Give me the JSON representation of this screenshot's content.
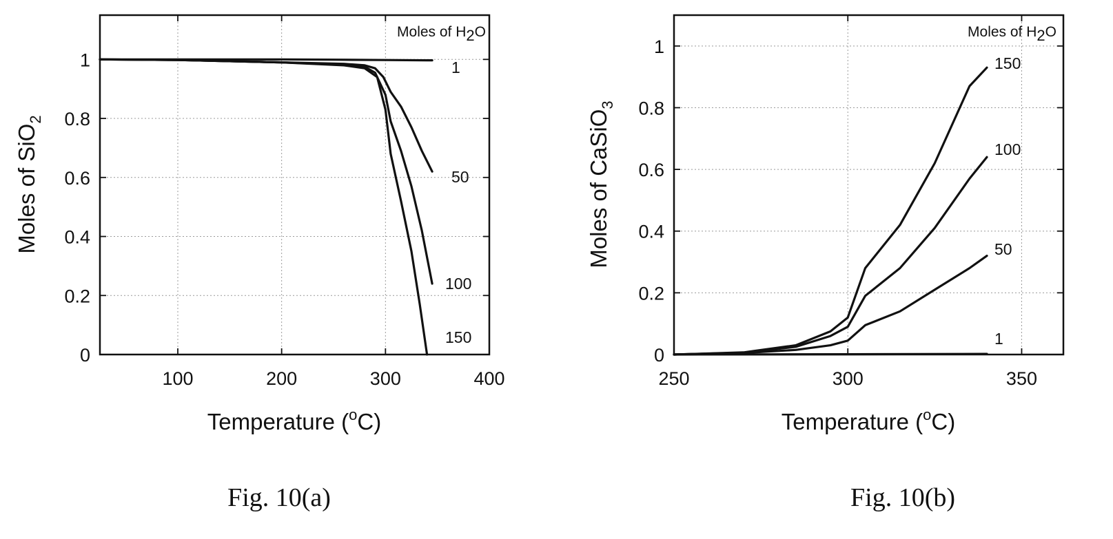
{
  "chart_data": [
    {
      "type": "line",
      "title": "",
      "xlabel": "Temperature (°C)",
      "ylabel": "Moles of SiO2",
      "xlim": [
        25,
        400
      ],
      "ylim": [
        0,
        1.15
      ],
      "xticks": [
        "100",
        "200",
        "300",
        "400"
      ],
      "yticks": [
        "0",
        "0.2",
        "0.4",
        "0.6",
        "0.8",
        "1"
      ],
      "grid": true,
      "legend_title": "Moles of H2O",
      "series": [
        {
          "name": "1",
          "x": [
            25,
            100,
            200,
            250,
            300,
            340,
            345
          ],
          "y": [
            1.0,
            1.0,
            1.0,
            0.999,
            0.998,
            0.997,
            0.997
          ]
        },
        {
          "name": "50",
          "x": [
            25,
            100,
            200,
            260,
            280,
            290,
            298,
            305,
            315,
            325,
            335,
            345
          ],
          "y": [
            1.0,
            0.998,
            0.99,
            0.985,
            0.98,
            0.97,
            0.94,
            0.89,
            0.84,
            0.77,
            0.69,
            0.62
          ]
        },
        {
          "name": "100",
          "x": [
            25,
            100,
            200,
            260,
            280,
            290,
            300,
            305,
            315,
            325,
            335,
            345
          ],
          "y": [
            1.0,
            0.998,
            0.99,
            0.982,
            0.975,
            0.955,
            0.88,
            0.79,
            0.69,
            0.57,
            0.42,
            0.24
          ]
        },
        {
          "name": "150",
          "x": [
            25,
            100,
            200,
            260,
            280,
            292,
            300,
            305,
            315,
            325,
            333,
            340
          ],
          "y": [
            1.0,
            0.998,
            0.99,
            0.98,
            0.97,
            0.94,
            0.83,
            0.68,
            0.52,
            0.35,
            0.17,
            0.0
          ]
        }
      ]
    },
    {
      "type": "line",
      "title": "",
      "xlabel": "Temperature (°C)",
      "ylabel": "Moles of CaSiO3",
      "xlim": [
        250,
        362
      ],
      "ylim": [
        0,
        1.1
      ],
      "xticks": [
        "250",
        "300",
        "350"
      ],
      "yticks": [
        "0",
        "0.2",
        "0.4",
        "0.6",
        "0.8",
        "1"
      ],
      "grid": true,
      "legend_title": "Moles of H2O",
      "series": [
        {
          "name": "1",
          "x": [
            250,
            300,
            340
          ],
          "y": [
            0.0,
            0.001,
            0.002
          ]
        },
        {
          "name": "50",
          "x": [
            250,
            270,
            285,
            295,
            300,
            305,
            315,
            325,
            335,
            340
          ],
          "y": [
            0.0,
            0.005,
            0.015,
            0.03,
            0.045,
            0.095,
            0.14,
            0.21,
            0.28,
            0.32
          ]
        },
        {
          "name": "100",
          "x": [
            250,
            270,
            285,
            295,
            300,
            305,
            315,
            325,
            335,
            340
          ],
          "y": [
            0.0,
            0.006,
            0.025,
            0.06,
            0.09,
            0.19,
            0.28,
            0.41,
            0.57,
            0.64
          ]
        },
        {
          "name": "150",
          "x": [
            250,
            270,
            285,
            295,
            300,
            305,
            315,
            325,
            335,
            340
          ],
          "y": [
            0.0,
            0.007,
            0.03,
            0.075,
            0.12,
            0.28,
            0.42,
            0.62,
            0.87,
            0.93
          ]
        }
      ]
    }
  ],
  "text": {
    "a": {
      "xlabel_main": "Temperature (",
      "xlabel_sup": "o",
      "xlabel_tail": "C)",
      "ylabel_main": "Moles of SiO",
      "ylabel_sub": "2",
      "legend_main": "Moles of H",
      "legend_sub": "2",
      "legend_tail": "O",
      "caption": "Fig. 10(a)"
    },
    "b": {
      "xlabel_main": "Temperature (",
      "xlabel_sup": "o",
      "xlabel_tail": "C)",
      "ylabel_main": "Moles of CaSiO",
      "ylabel_sub": "3",
      "legend_main": "Moles of H",
      "legend_sub": "2",
      "legend_tail": "O",
      "caption": "Fig. 10(b)"
    }
  }
}
